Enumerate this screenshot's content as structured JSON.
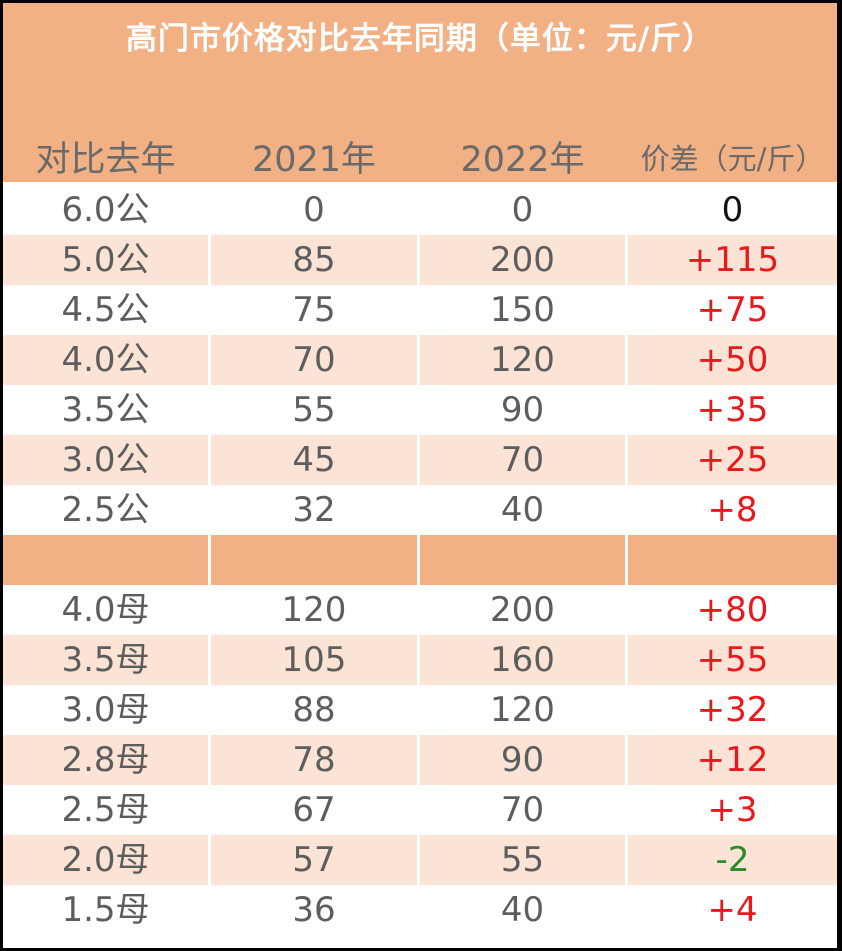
{
  "title": "高门市价格对比去年同期（单位：元/斤）",
  "headers": [
    "对比去年",
    "2021年",
    "2022年",
    "价差（元/斤）"
  ],
  "male_rows": [
    {
      "spec": "6.0公",
      "y2021": "0",
      "y2022": "0",
      "diff": "0"
    },
    {
      "spec": "5.0公",
      "y2021": "85",
      "y2022": "200",
      "diff": "+115"
    },
    {
      "spec": "4.5公",
      "y2021": "75",
      "y2022": "150",
      "diff": "+75"
    },
    {
      "spec": "4.0公",
      "y2021": "70",
      "y2022": "120",
      "diff": "+50"
    },
    {
      "spec": "3.5公",
      "y2021": "55",
      "y2022": "90",
      "diff": "+35"
    },
    {
      "spec": "3.0公",
      "y2021": "45",
      "y2022": "70",
      "diff": "+25"
    },
    {
      "spec": "2.5公",
      "y2021": "32",
      "y2022": "40",
      "diff": "+8"
    }
  ],
  "female_rows": [
    {
      "spec": "4.0母",
      "y2021": "120",
      "y2022": "200",
      "diff": "+80"
    },
    {
      "spec": "3.5母",
      "y2021": "105",
      "y2022": "160",
      "diff": "+55"
    },
    {
      "spec": "3.0母",
      "y2021": "88",
      "y2022": "120",
      "diff": "+32"
    },
    {
      "spec": "2.8母",
      "y2021": "78",
      "y2022": "90",
      "diff": "+12"
    },
    {
      "spec": "2.5母",
      "y2021": "67",
      "y2022": "70",
      "diff": "+3"
    },
    {
      "spec": "2.0母",
      "y2021": "57",
      "y2022": "55",
      "diff": "-2"
    },
    {
      "spec": "1.5母",
      "y2021": "36",
      "y2022": "40",
      "diff": "+4"
    }
  ],
  "colors": {
    "header_bg": "#f2b085",
    "shade_row": "#fbe3d6",
    "positive": "#e8191d",
    "negative": "#2a8b2a"
  }
}
